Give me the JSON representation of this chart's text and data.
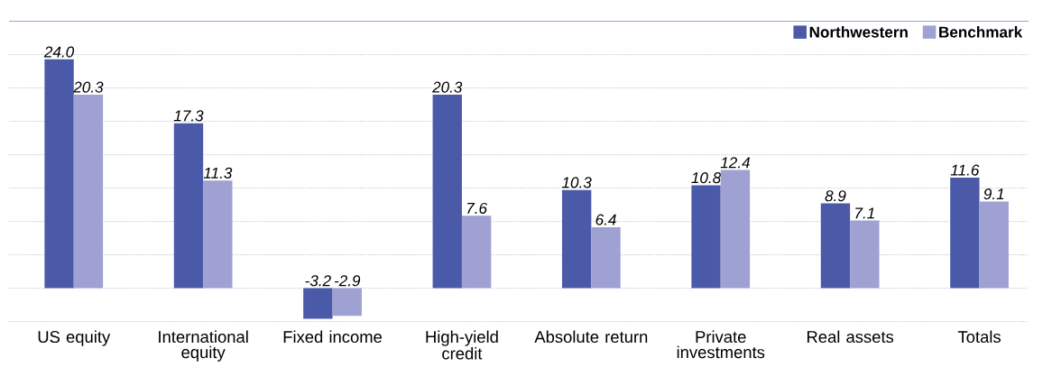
{
  "chart_data": {
    "type": "bar",
    "categories": [
      "US equity",
      "International equity",
      "Fixed income",
      "High-yield credit",
      "Absolute return",
      "Private investments",
      "Real assets",
      "Totals"
    ],
    "series": [
      {
        "name": "Northwestern",
        "color": "#4a5aa8",
        "values": [
          24.0,
          17.3,
          -3.2,
          20.3,
          10.3,
          10.8,
          8.9,
          11.6
        ],
        "value_labels": [
          "24.0",
          "17.3",
          "-3.2",
          "20.3",
          "10.3",
          "10.8",
          "8.9",
          "11.6"
        ]
      },
      {
        "name": "Benchmark",
        "color": "#9ea1d1",
        "values": [
          20.3,
          11.3,
          -2.9,
          7.6,
          6.4,
          12.4,
          7.1,
          9.1
        ],
        "value_labels": [
          "20.3",
          "11.3",
          "-2.9",
          "7.6",
          "6.4",
          "12.4",
          "7.1",
          "9.1"
        ]
      }
    ],
    "ylim": [
      -3.5,
      28
    ],
    "yticks": [
      {
        "value": -3.5,
        "label": null
      },
      {
        "value": 0,
        "label": null
      },
      {
        "value": 3.5,
        "label": null
      },
      {
        "value": 7,
        "label": null
      },
      {
        "value": 10.5,
        "label": null
      },
      {
        "value": 14,
        "label": null
      },
      {
        "value": 17.5,
        "label": null
      },
      {
        "value": 21,
        "label": null
      },
      {
        "value": 24.5,
        "label": null
      },
      {
        "value": 28,
        "label": null
      }
    ],
    "tick_labels": "x",
    "grid": "y",
    "legend": "top right"
  }
}
